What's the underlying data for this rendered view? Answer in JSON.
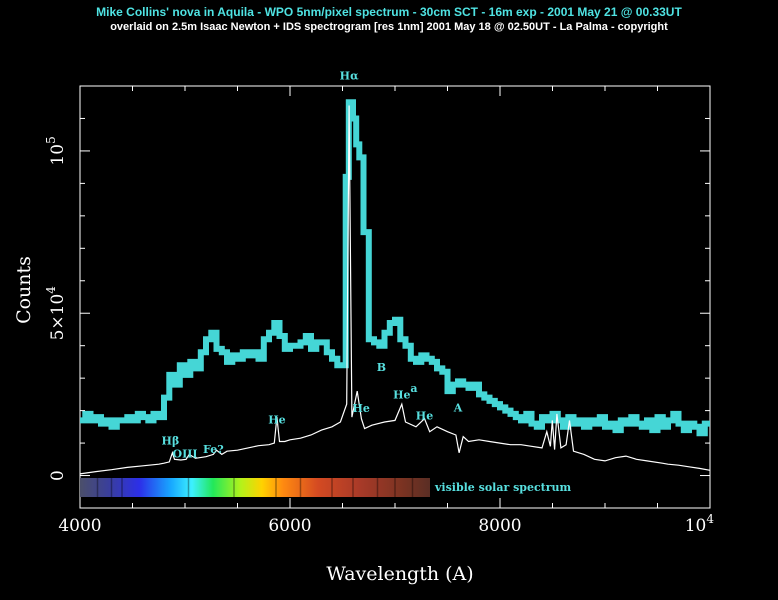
{
  "title_line1": "Mike Collins' nova in Aquila - WPO 5nm/pixel spectrum - 30cm SCT - 16m exp - 2001 May 21 @ 00.33UT",
  "title_line2": "overlaid on 2.5m Isaac Newton + IDS spectrogram [res 1nm] 2001 May 18 @ 02.50UT - La Palma - copyright",
  "colors": {
    "background": "#000000",
    "wpo_series": "#45d6d6",
    "ids_series": "#ffffff",
    "annotation": "#58e0e0",
    "axis": "#ffffff"
  },
  "chart_data": {
    "type": "line",
    "xlabel": "Wavelength (A)",
    "ylabel": "Counts",
    "xlim": [
      4000,
      10000
    ],
    "ylim": [
      -10000,
      120000
    ],
    "x_ticks": [
      {
        "value": 4000,
        "label": "4000"
      },
      {
        "value": 6000,
        "label": "6000"
      },
      {
        "value": 8000,
        "label": "8000"
      },
      {
        "value": 10000,
        "label": "10",
        "sup": "4"
      }
    ],
    "y_ticks": [
      {
        "value": 0,
        "label": "0"
      },
      {
        "value": 50000,
        "label": "5×10",
        "sup": "4"
      },
      {
        "value": 100000,
        "label": "10",
        "sup": "5"
      }
    ],
    "grid": false,
    "series": [
      {
        "x": [
          4000,
          4050,
          4100,
          4150,
          4200,
          4250,
          4300,
          4350,
          4400,
          4450,
          4500,
          4550,
          4600,
          4650,
          4700,
          4750,
          4800,
          4850,
          4900,
          4950,
          5000,
          5050,
          5100,
          5150,
          5200,
          5250,
          5300,
          5350,
          5400,
          5450,
          5500,
          5550,
          5600,
          5650,
          5700,
          5750,
          5800,
          5850,
          5900,
          5950,
          6000,
          6050,
          6100,
          6150,
          6200,
          6250,
          6300,
          6350,
          6400,
          6450,
          6500,
          6530,
          6560,
          6600,
          6630,
          6660,
          6700,
          6750,
          6800,
          6850,
          6900,
          6950,
          7000,
          7050,
          7100,
          7150,
          7200,
          7250,
          7300,
          7350,
          7400,
          7450,
          7500,
          7550,
          7600,
          7650,
          7700,
          7750,
          7800,
          7850,
          7900,
          7950,
          8000,
          8050,
          8100,
          8150,
          8200,
          8250,
          8300,
          8350,
          8400,
          8450,
          8500,
          8550,
          8600,
          8650,
          8700,
          8750,
          8800,
          8850,
          8900,
          8950,
          9000,
          9050,
          9100,
          9150,
          9200,
          9250,
          9300,
          9350,
          9400,
          9450,
          9500,
          9550,
          9600,
          9650,
          9700,
          9750,
          9800,
          9850,
          9900,
          9950
        ],
        "values": [
          17000,
          19000,
          17000,
          18000,
          16000,
          17000,
          15000,
          17000,
          17000,
          18000,
          17000,
          19000,
          18000,
          17000,
          19000,
          18000,
          24000,
          31000,
          28000,
          34000,
          31000,
          35000,
          33000,
          38000,
          42000,
          44000,
          39000,
          38000,
          35000,
          37000,
          36000,
          38000,
          37000,
          38000,
          36000,
          42000,
          44000,
          47000,
          43000,
          39000,
          40000,
          40000,
          41000,
          43000,
          39000,
          41000,
          41000,
          38000,
          36000,
          34000,
          34000,
          92000,
          115000,
          110000,
          102000,
          98000,
          75000,
          42000,
          41000,
          40000,
          44000,
          47000,
          48000,
          42000,
          40000,
          36000,
          35000,
          37000,
          36000,
          35000,
          33000,
          32000,
          26000,
          28000,
          29000,
          28000,
          27000,
          28000,
          25000,
          24000,
          23000,
          22000,
          21000,
          20000,
          19000,
          18000,
          17000,
          19000,
          16000,
          15000,
          18000,
          17000,
          19000,
          17000,
          15000,
          18000,
          16000,
          17000,
          15000,
          17000,
          16000,
          18000,
          15000,
          16000,
          14000,
          17000,
          16000,
          18000,
          16000,
          15000,
          17000,
          14000,
          18000,
          15000,
          17000,
          19000,
          16000,
          14000,
          16000,
          15000,
          13000,
          16000
        ]
      },
      {
        "x": [
          4000,
          4150,
          4300,
          4450,
          4600,
          4750,
          4800,
          4850,
          4880,
          4900,
          4960,
          5010,
          5040,
          5100,
          5200,
          5270,
          5300,
          5350,
          5400,
          5500,
          5600,
          5700,
          5800,
          5850,
          5875,
          5900,
          5950,
          6000,
          6100,
          6200,
          6300,
          6400,
          6480,
          6540,
          6563,
          6590,
          6640,
          6680,
          6710,
          6780,
          6900,
          7000,
          7065,
          7100,
          7200,
          7281,
          7330,
          7400,
          7500,
          7580,
          7610,
          7650,
          7700,
          7800,
          7900,
          8000,
          8100,
          8200,
          8300,
          8400,
          8446,
          8480,
          8498,
          8520,
          8542,
          8580,
          8630,
          8662,
          8700,
          8800,
          8900,
          9000,
          9100,
          9200,
          9300,
          9400,
          9546,
          9600,
          9700,
          9800,
          9900,
          10000
        ],
        "values": [
          500,
          1200,
          1800,
          2500,
          3000,
          3500,
          3800,
          4200,
          7000,
          5000,
          4800,
          5000,
          6500,
          5300,
          5800,
          6500,
          7800,
          6500,
          7500,
          7800,
          8500,
          9200,
          9500,
          10000,
          18000,
          10500,
          10500,
          11000,
          11500,
          12500,
          14000,
          15000,
          16500,
          22000,
          114000,
          18000,
          26000,
          17500,
          14500,
          15500,
          16500,
          17000,
          22000,
          16500,
          15000,
          17500,
          13500,
          15000,
          13500,
          12500,
          7000,
          12000,
          10500,
          11000,
          10500,
          10000,
          9500,
          9500,
          9000,
          8500,
          13500,
          9000,
          17000,
          8000,
          19000,
          8500,
          9500,
          17000,
          7500,
          6500,
          5000,
          4500,
          5500,
          6000,
          5000,
          4500,
          3800,
          3500,
          3200,
          2700,
          2200,
          1600
        ]
      }
    ],
    "annotations": [
      {
        "text": "Hα",
        "x": 6563,
        "y": 122000
      },
      {
        "text": "Hβ",
        "x": 4861,
        "y": 9500
      },
      {
        "text": "OIII",
        "x": 5000,
        "y": 5500
      },
      {
        "text": "Fe?",
        "x": 5270,
        "y": 7000
      },
      {
        "text": "He",
        "x": 5876,
        "y": 16000
      },
      {
        "text": "He",
        "x": 6678,
        "y": 19500
      },
      {
        "text": "He",
        "x": 7065,
        "y": 23800
      },
      {
        "text": "He",
        "x": 7281,
        "y": 17200
      },
      {
        "text": "B",
        "x": 6870,
        "y": 32200
      },
      {
        "text": "a",
        "x": 7180,
        "y": 25800
      },
      {
        "text": "A",
        "x": 7600,
        "y": 19800
      }
    ],
    "colorbar_label": "visible solar spectrum"
  }
}
